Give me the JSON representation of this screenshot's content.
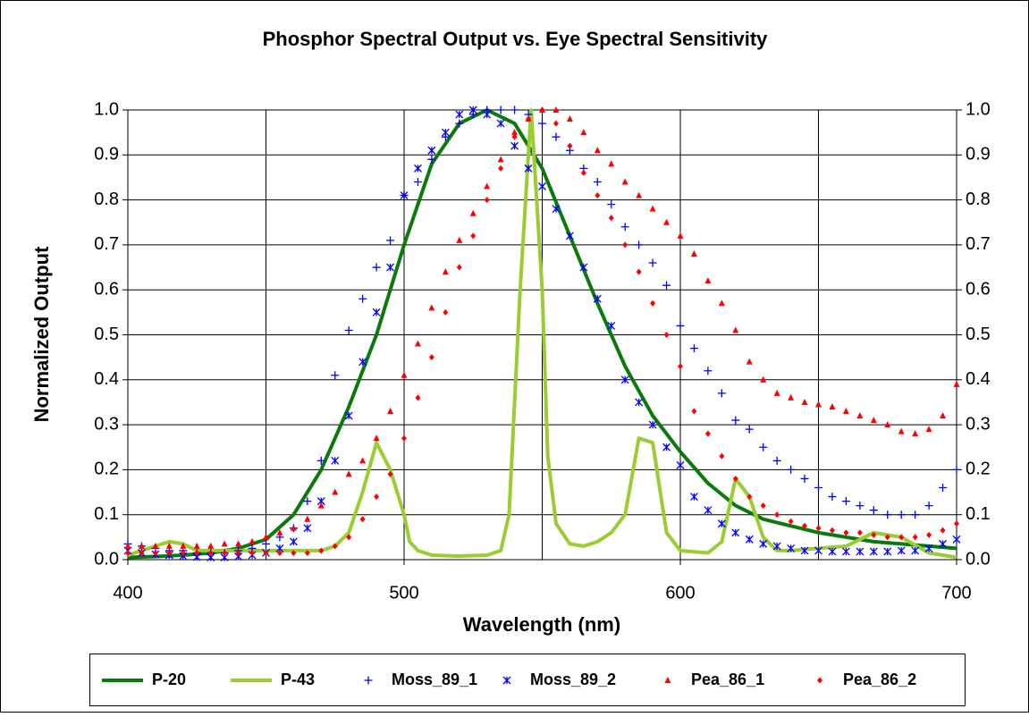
{
  "chart_data": {
    "type": "scatter-line",
    "title": "Phosphor Spectral Output vs. Eye Spectral Sensitivity",
    "xlabel": "Wavelength (nm)",
    "ylabel": "Normalized Output",
    "xlim": [
      400,
      700
    ],
    "xticks": [
      400,
      500,
      600,
      700
    ],
    "xgrid_minor": [
      450,
      550,
      650
    ],
    "ylim": [
      0,
      1
    ],
    "yticks": [
      {
        "value": 0,
        "label": "0.0"
      },
      0.1,
      0.2,
      0.3,
      0.4,
      0.5,
      0.6,
      0.7,
      0.8,
      0.9,
      {
        "value": 1,
        "label": "1.0"
      }
    ],
    "y2lim": [
      0,
      1
    ],
    "y2ticks": [
      {
        "value": 0,
        "label": "0.0"
      },
      0.1,
      0.2,
      0.3,
      0.4,
      0.5,
      0.6,
      0.7,
      0.8,
      0.9,
      {
        "value": 1,
        "label": "1.0"
      }
    ],
    "grid": true,
    "legend": "bottom",
    "x": [
      400,
      405,
      410,
      415,
      420,
      425,
      430,
      435,
      440,
      445,
      450,
      455,
      460,
      465,
      470,
      475,
      480,
      485,
      490,
      495,
      500,
      505,
      510,
      515,
      520,
      525,
      530,
      535,
      540,
      545,
      550,
      555,
      560,
      565,
      570,
      575,
      580,
      585,
      590,
      595,
      600,
      605,
      610,
      615,
      620,
      625,
      630,
      635,
      640,
      645,
      650,
      655,
      660,
      665,
      670,
      675,
      680,
      685,
      690,
      695,
      700
    ],
    "series": [
      {
        "name": "P-20",
        "color": "#0a7a0a",
        "marker": "line",
        "x": [
          400,
          410,
          420,
          430,
          440,
          450,
          460,
          470,
          480,
          490,
          500,
          510,
          520,
          530,
          540,
          550,
          560,
          570,
          580,
          590,
          600,
          610,
          620,
          630,
          640,
          650,
          660,
          670,
          680,
          690,
          700
        ],
        "values": [
          0.005,
          0.007,
          0.01,
          0.015,
          0.025,
          0.045,
          0.1,
          0.2,
          0.34,
          0.5,
          0.7,
          0.88,
          0.97,
          1.0,
          0.97,
          0.87,
          0.72,
          0.57,
          0.43,
          0.32,
          0.24,
          0.17,
          0.12,
          0.09,
          0.075,
          0.06,
          0.05,
          0.04,
          0.035,
          0.03,
          0.025
        ]
      },
      {
        "name": "P-43",
        "color": "#9acd32",
        "marker": "line",
        "x": [
          400,
          405,
          410,
          415,
          420,
          425,
          430,
          440,
          450,
          460,
          470,
          475,
          480,
          485,
          490,
          495,
          500,
          502,
          505,
          510,
          520,
          530,
          535,
          538,
          542,
          546,
          550,
          552,
          555,
          560,
          565,
          570,
          575,
          580,
          585,
          590,
          595,
          600,
          610,
          615,
          620,
          625,
          630,
          635,
          640,
          650,
          660,
          670,
          680,
          690,
          700
        ],
        "values": [
          0.01,
          0.02,
          0.03,
          0.04,
          0.035,
          0.02,
          0.02,
          0.02,
          0.02,
          0.02,
          0.02,
          0.03,
          0.06,
          0.15,
          0.26,
          0.2,
          0.1,
          0.04,
          0.02,
          0.01,
          0.008,
          0.01,
          0.02,
          0.1,
          0.6,
          1.0,
          0.6,
          0.23,
          0.08,
          0.035,
          0.03,
          0.04,
          0.06,
          0.1,
          0.27,
          0.26,
          0.06,
          0.02,
          0.015,
          0.04,
          0.18,
          0.14,
          0.05,
          0.02,
          0.02,
          0.025,
          0.03,
          0.06,
          0.05,
          0.015,
          0.005
        ]
      },
      {
        "name": "Moss_89_1",
        "color": "#0000ff",
        "marker": "plus",
        "values": [
          0.035,
          0.03,
          0.025,
          0.02,
          0.02,
          0.015,
          0.015,
          0.015,
          0.02,
          0.025,
          0.035,
          0.05,
          0.07,
          0.13,
          0.22,
          0.41,
          0.51,
          0.58,
          0.65,
          0.71,
          0.81,
          0.84,
          0.89,
          0.94,
          0.97,
          0.99,
          1.0,
          1.0,
          1.0,
          0.99,
          0.97,
          0.94,
          0.91,
          0.87,
          0.84,
          0.79,
          0.74,
          0.7,
          0.66,
          0.61,
          0.52,
          0.47,
          0.42,
          0.37,
          0.31,
          0.29,
          0.25,
          0.22,
          0.2,
          0.18,
          0.16,
          0.14,
          0.13,
          0.12,
          0.11,
          0.1,
          0.1,
          0.1,
          0.12,
          0.16,
          0.2
        ]
      },
      {
        "name": "Moss_89_2",
        "color": "#0000ff",
        "marker": "cross",
        "values": [
          0.02,
          0.015,
          0.012,
          0.01,
          0.008,
          0.006,
          0.005,
          0.005,
          0.007,
          0.01,
          0.015,
          0.025,
          0.04,
          0.07,
          0.13,
          0.22,
          0.32,
          0.44,
          0.55,
          0.65,
          0.81,
          0.87,
          0.91,
          0.95,
          0.99,
          1.0,
          0.99,
          0.97,
          0.92,
          0.87,
          0.83,
          0.78,
          0.72,
          0.65,
          0.58,
          0.52,
          0.4,
          0.35,
          0.3,
          0.25,
          0.21,
          0.14,
          0.11,
          0.08,
          0.06,
          0.045,
          0.035,
          0.03,
          0.025,
          0.02,
          0.02,
          0.018,
          0.018,
          0.018,
          0.018,
          0.018,
          0.02,
          0.02,
          0.025,
          0.035,
          0.045
        ]
      },
      {
        "name": "Pea_86_1",
        "color": "#ff0000",
        "marker": "triangle",
        "values": [
          0.03,
          0.03,
          0.03,
          0.03,
          0.03,
          0.03,
          0.03,
          0.035,
          0.035,
          0.04,
          0.05,
          0.06,
          0.07,
          0.09,
          0.12,
          0.15,
          0.19,
          0.22,
          0.27,
          0.33,
          0.41,
          0.48,
          0.56,
          0.64,
          0.71,
          0.77,
          0.83,
          0.89,
          0.95,
          0.98,
          1.0,
          1.0,
          0.98,
          0.95,
          0.91,
          0.88,
          0.84,
          0.81,
          0.78,
          0.75,
          0.72,
          0.68,
          0.62,
          0.57,
          0.51,
          0.44,
          0.4,
          0.37,
          0.36,
          0.35,
          0.345,
          0.34,
          0.33,
          0.32,
          0.31,
          0.3,
          0.285,
          0.28,
          0.29,
          0.32,
          0.39
        ]
      },
      {
        "name": "Pea_86_2",
        "color": "#ff0000",
        "marker": "diamond",
        "values": [
          0.015,
          0.015,
          0.015,
          0.015,
          0.015,
          0.015,
          0.015,
          0.015,
          0.015,
          0.015,
          0.015,
          0.015,
          0.015,
          0.015,
          0.02,
          0.03,
          0.05,
          0.09,
          0.14,
          0.19,
          0.27,
          0.36,
          0.45,
          0.55,
          0.65,
          0.72,
          0.8,
          0.87,
          0.94,
          0.98,
          1.0,
          0.97,
          0.92,
          0.86,
          0.81,
          0.76,
          0.7,
          0.64,
          0.57,
          0.5,
          0.43,
          0.33,
          0.28,
          0.23,
          0.18,
          0.14,
          0.12,
          0.1,
          0.085,
          0.075,
          0.07,
          0.065,
          0.06,
          0.06,
          0.055,
          0.05,
          0.05,
          0.05,
          0.055,
          0.065,
          0.08
        ]
      }
    ]
  }
}
